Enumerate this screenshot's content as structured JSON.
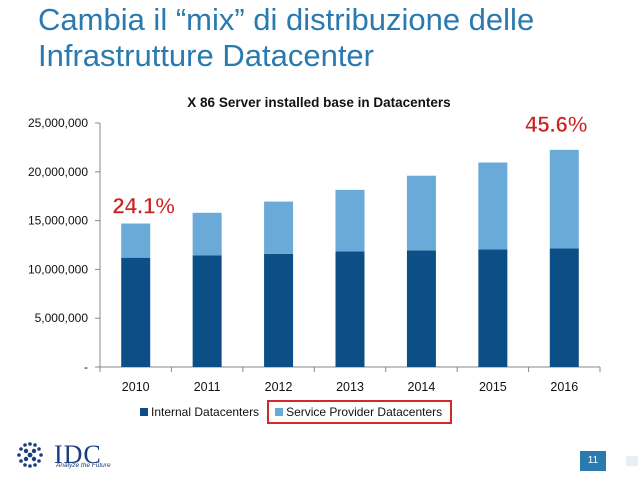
{
  "slide": {
    "title_line1": "Cambia il “mix” di distribuzione delle",
    "title_line2": "Infrastrutture Datacenter",
    "page_number": "11"
  },
  "logo": {
    "name": "IDC",
    "tagline": "Analyze the Future"
  },
  "chart_data": {
    "type": "bar",
    "stacked": true,
    "title": "X 86 Server installed base in Datacenters",
    "categories": [
      "2010",
      "2011",
      "2012",
      "2013",
      "2014",
      "2015",
      "2016"
    ],
    "series": [
      {
        "name": "Internal Datacenters",
        "color": "#0b4f86",
        "values": [
          11200000,
          11450000,
          11600000,
          11850000,
          11950000,
          12050000,
          12150000
        ]
      },
      {
        "name": "Service Provider Datacenters",
        "color": "#6aaad8",
        "values": [
          3500000,
          4350000,
          5350000,
          6300000,
          7650000,
          8900000,
          10100000
        ]
      }
    ],
    "ylim": [
      0,
      25000000
    ],
    "yticks": [
      "-",
      "5,000,000",
      "10,000,000",
      "15,000,000",
      "20,000,000",
      "25,000,000"
    ],
    "ytick_values": [
      0,
      5000000,
      10000000,
      15000000,
      20000000,
      25000000
    ],
    "grid": false,
    "legend_position": "bottom",
    "annotations": [
      {
        "text": "24.1%",
        "category": "2010",
        "color": "#cc2222"
      },
      {
        "text": "45.6%",
        "category": "2016",
        "color": "#cc2222"
      }
    ]
  }
}
